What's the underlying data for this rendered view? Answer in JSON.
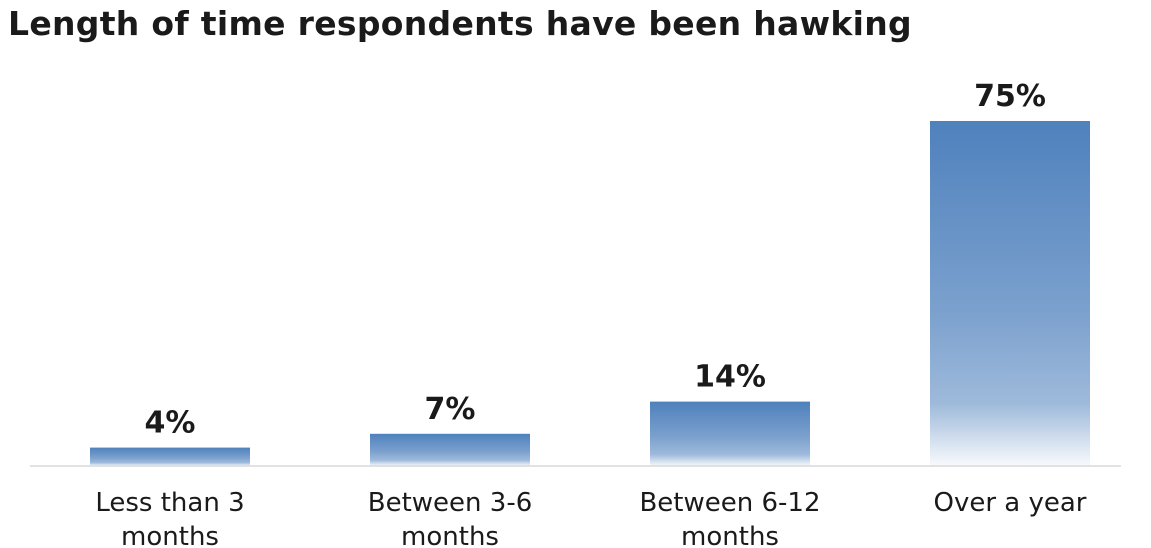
{
  "chart_data": {
    "type": "bar",
    "title": "Length of time respondents have been hawking",
    "categories": [
      [
        "Less than 3",
        "months"
      ],
      [
        "Between 3-6",
        "months"
      ],
      [
        "Between 6-12",
        "months"
      ],
      [
        "Over a year"
      ]
    ],
    "values": [
      4,
      7,
      14,
      75
    ],
    "data_labels": [
      "4%",
      "7%",
      "14%",
      "75%"
    ],
    "ylim": [
      0,
      75
    ],
    "grid": false,
    "legend": "none",
    "bar_color": "#4f81bd"
  }
}
